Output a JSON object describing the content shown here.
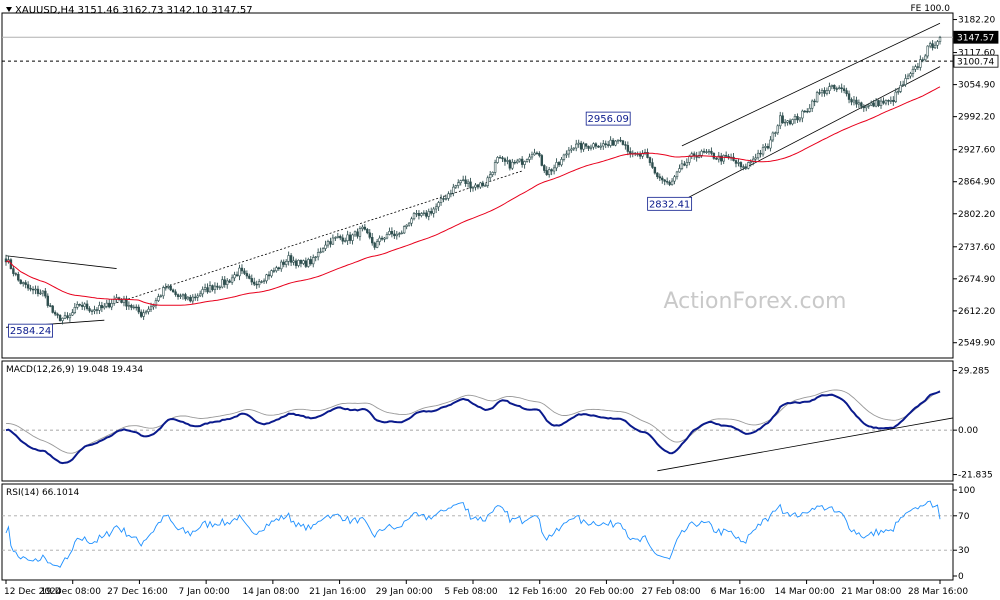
{
  "watermark": "ActionForex.com",
  "chart_data": [
    {
      "type": "line",
      "subtype": "candlestick",
      "title": "XAUUSD,H4  3151.46 3162.73 3142.10 3147.57",
      "corner_label": "FE 100.0",
      "ylim": [
        2520,
        3195
      ],
      "yticks": [
        3182.2,
        3117.6,
        3054.9,
        2992.2,
        2927.6,
        2864.9,
        2802.2,
        2737.6,
        2674.9,
        2612.2,
        2549.9
      ],
      "ytick_labels": [
        "3182.20",
        "3117.60",
        "3054.90",
        "2992.20",
        "2927.60",
        "2864.90",
        "2802.20",
        "2737.60",
        "2674.90",
        "2612.20",
        "2549.90"
      ],
      "price_badges": [
        {
          "label": "3147.57",
          "value": 3147.57,
          "style": "last-price"
        },
        {
          "label": "3100.74",
          "value": 3100.74,
          "style": "dashed-level"
        }
      ],
      "annotations": [
        {
          "label": "2584.24",
          "x": "16 Dec",
          "value": 2584.24
        },
        {
          "label": "2956.09",
          "x": "21 Feb",
          "value": 2956.09
        },
        {
          "label": "2832.41",
          "x": "28 Feb",
          "value": 2832.41
        }
      ],
      "series": [
        {
          "type": "price",
          "close_points": [
            [
              "12 Dec",
              2715
            ],
            [
              "13 Dec",
              2672
            ],
            [
              "16 Dec",
              2652
            ],
            [
              "17 Dec",
              2648
            ],
            [
              "18 Dec",
              2600
            ],
            [
              "19 Dec",
              2596
            ],
            [
              "20 Dec",
              2625
            ],
            [
              "23 Dec",
              2615
            ],
            [
              "24 Dec",
              2618
            ],
            [
              "26 Dec",
              2638
            ],
            [
              "27 Dec",
              2625
            ],
            [
              "30 Dec",
              2606
            ],
            [
              "31 Dec",
              2625
            ],
            [
              "2 Jan",
              2659
            ],
            [
              "3 Jan",
              2640
            ],
            [
              "6 Jan",
              2635
            ],
            [
              "7 Jan",
              2650
            ],
            [
              "8 Jan",
              2662
            ],
            [
              "9 Jan",
              2669
            ],
            [
              "10 Jan",
              2690
            ],
            [
              "13 Jan",
              2665
            ],
            [
              "14 Jan",
              2678
            ],
            [
              "15 Jan",
              2694
            ],
            [
              "16 Jan",
              2715
            ],
            [
              "17 Jan",
              2703
            ],
            [
              "20 Jan",
              2710
            ],
            [
              "21 Jan",
              2745
            ],
            [
              "22 Jan",
              2755
            ],
            [
              "23 Jan",
              2755
            ],
            [
              "24 Jan",
              2771
            ],
            [
              "27 Jan",
              2740
            ],
            [
              "28 Jan",
              2763
            ],
            [
              "29 Jan",
              2760
            ],
            [
              "30 Jan",
              2795
            ],
            [
              "31 Jan",
              2798
            ],
            [
              "3 Feb",
              2815
            ],
            [
              "4 Feb",
              2842
            ],
            [
              "5 Feb",
              2867
            ],
            [
              "6 Feb",
              2857
            ],
            [
              "7 Feb",
              2861
            ],
            [
              "10 Feb",
              2908
            ],
            [
              "11 Feb",
              2898
            ],
            [
              "12 Feb",
              2905
            ],
            [
              "13 Feb",
              2928
            ],
            [
              "14 Feb",
              2883
            ],
            [
              "17 Feb",
              2899
            ],
            [
              "18 Feb",
              2935
            ],
            [
              "19 Feb",
              2933
            ],
            [
              "20 Feb",
              2939
            ],
            [
              "21 Feb",
              2936
            ],
            [
              "24 Feb",
              2952
            ],
            [
              "25 Feb",
              2915
            ],
            [
              "26 Feb",
              2916
            ],
            [
              "27 Feb",
              2876
            ],
            [
              "28 Feb",
              2857
            ],
            [
              "3 Mar",
              2893
            ],
            [
              "4 Mar",
              2918
            ],
            [
              "5 Mar",
              2920
            ],
            [
              "6 Mar",
              2911
            ],
            [
              "7 Mar",
              2910
            ],
            [
              "10 Mar",
              2889
            ],
            [
              "11 Mar",
              2916
            ],
            [
              "12 Mar",
              2933
            ],
            [
              "13 Mar",
              2988
            ],
            [
              "14 Mar",
              2984
            ],
            [
              "17 Mar",
              3000
            ],
            [
              "18 Mar",
              3035
            ],
            [
              "19 Mar",
              3048
            ],
            [
              "20 Mar",
              3044
            ],
            [
              "21 Mar",
              3023
            ],
            [
              "24 Mar",
              3011
            ],
            [
              "25 Mar",
              3020
            ],
            [
              "26 Mar",
              3020
            ],
            [
              "27 Mar",
              3056
            ],
            [
              "28 Mar",
              3085
            ],
            [
              "31 Mar",
              3124
            ],
            [
              "1 Apr",
              3147
            ]
          ]
        },
        {
          "type": "moving-average",
          "color": "#e8001c"
        }
      ],
      "trendlines": [
        "horizontal support near 2584",
        "descending line from 12 Dec high",
        "dotted rising line from late Dec to mid Feb",
        "rising channel from 28 Feb"
      ],
      "indicators": [
        {
          "name": "MACD(12,26,9)",
          "label": "MACD(12,26,9) 19.048 19.434",
          "macd": 19.048,
          "signal": 19.434,
          "ylim": [
            -25,
            34
          ],
          "yticks": [
            29.285,
            0.0,
            -21.835
          ],
          "ytick_labels": [
            "29.285",
            "0.00",
            "-21.835"
          ]
        },
        {
          "name": "RSI(14)",
          "label": "RSI(14) 66.1014",
          "value": 66.1014,
          "ylim": [
            0,
            100
          ],
          "yticks": [
            100,
            70,
            30,
            0
          ],
          "ytick_labels": [
            "100",
            "70",
            "30",
            "0"
          ]
        }
      ],
      "x_tick_labels": [
        "12 Dec 2024",
        "19 Dec 08:00",
        "27 Dec 16:00",
        "7 Jan 00:00",
        "14 Jan 08:00",
        "21 Jan 16:00",
        "29 Jan 00:00",
        "5 Feb 08:00",
        "12 Feb 16:00",
        "20 Feb 00:00",
        "27 Feb 08:00",
        "6 Mar 16:00",
        "14 Mar 00:00",
        "21 Mar 08:00",
        "28 Mar 16:00"
      ],
      "grid": false,
      "colors": {
        "candles": "#2f4f4f",
        "moving_average": "#e8001c",
        "macd": "#0a1a8c",
        "macd_signal": "#9a9a9a",
        "rsi": "#1e90ff",
        "frame": "#000000"
      }
    }
  ]
}
